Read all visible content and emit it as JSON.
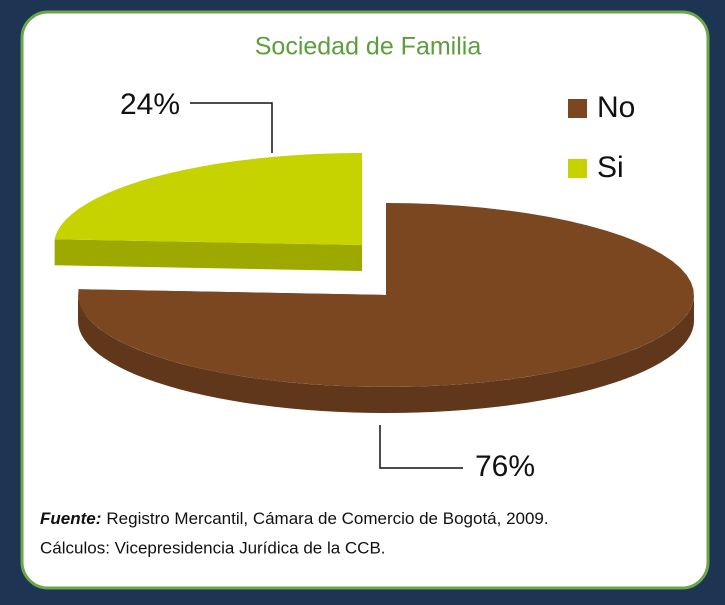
{
  "chart_data": {
    "type": "pie",
    "title": "Sociedad de Familia",
    "categories": [
      "No",
      "Si"
    ],
    "values": [
      76,
      24
    ],
    "value_labels": [
      "76%",
      "24%"
    ],
    "colors": [
      "#7b4721",
      "#c6d300"
    ],
    "legend": "top-right",
    "source_label": "Fuente:",
    "source": "Registro Mercantil, Cámara de Comercio de Bogotá, 2009.",
    "note": "Cálculos: Vicepresidencia Jurídica de la CCB."
  }
}
